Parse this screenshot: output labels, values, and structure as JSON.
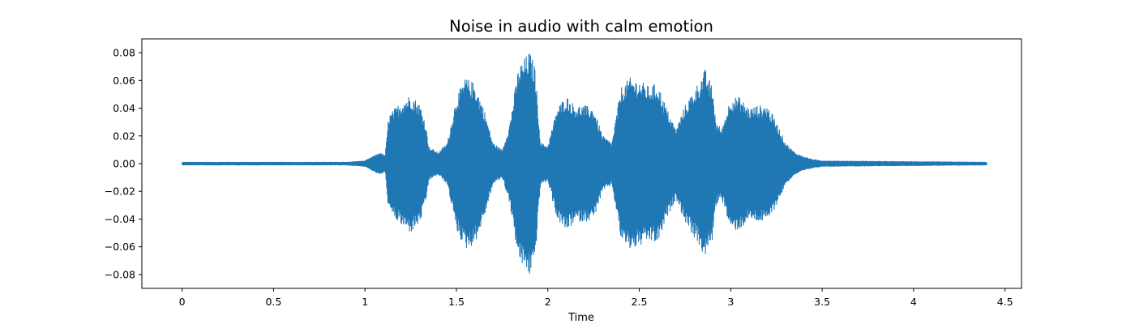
{
  "chart_data": {
    "type": "area",
    "title": "Noise in audio with calm emotion",
    "xlabel": "Time",
    "ylabel": "",
    "xlim": [
      -0.22,
      4.59
    ],
    "ylim": [
      -0.09,
      0.09
    ],
    "x_ticks": [
      0,
      0.5,
      1,
      1.5,
      2,
      2.5,
      3,
      3.5,
      4,
      4.5
    ],
    "x_tick_labels": [
      "0",
      "0.5",
      "1",
      "1.5",
      "2",
      "2.5",
      "3",
      "3.5",
      "4",
      "4.5"
    ],
    "y_ticks": [
      -0.08,
      -0.06,
      -0.04,
      -0.02,
      0.0,
      0.02,
      0.04,
      0.06,
      0.08
    ],
    "y_tick_labels": [
      "−0.08",
      "−0.06",
      "−0.04",
      "−0.02",
      "0.00",
      "0.02",
      "0.04",
      "0.06",
      "0.08"
    ],
    "grid": false,
    "series_color": "#1f77b4",
    "series": [
      {
        "envelope": [
          [
            0.0,
            0.001
          ],
          [
            0.9,
            0.001
          ],
          [
            1.0,
            0.002
          ],
          [
            1.08,
            0.008
          ],
          [
            1.11,
            0.006
          ],
          [
            1.13,
            0.035
          ],
          [
            1.2,
            0.045
          ],
          [
            1.25,
            0.05
          ],
          [
            1.3,
            0.043
          ],
          [
            1.33,
            0.03
          ],
          [
            1.35,
            0.012
          ],
          [
            1.4,
            0.008
          ],
          [
            1.45,
            0.015
          ],
          [
            1.5,
            0.048
          ],
          [
            1.55,
            0.062
          ],
          [
            1.6,
            0.058
          ],
          [
            1.65,
            0.04
          ],
          [
            1.7,
            0.015
          ],
          [
            1.75,
            0.01
          ],
          [
            1.79,
            0.028
          ],
          [
            1.84,
            0.07
          ],
          [
            1.9,
            0.081
          ],
          [
            1.93,
            0.07
          ],
          [
            1.96,
            0.015
          ],
          [
            2.0,
            0.013
          ],
          [
            2.05,
            0.04
          ],
          [
            2.1,
            0.049
          ],
          [
            2.15,
            0.042
          ],
          [
            2.2,
            0.042
          ],
          [
            2.25,
            0.04
          ],
          [
            2.3,
            0.02
          ],
          [
            2.35,
            0.015
          ],
          [
            2.4,
            0.055
          ],
          [
            2.45,
            0.062
          ],
          [
            2.5,
            0.06
          ],
          [
            2.55,
            0.056
          ],
          [
            2.6,
            0.058
          ],
          [
            2.65,
            0.04
          ],
          [
            2.7,
            0.025
          ],
          [
            2.75,
            0.042
          ],
          [
            2.82,
            0.058
          ],
          [
            2.86,
            0.068
          ],
          [
            2.9,
            0.055
          ],
          [
            2.92,
            0.03
          ],
          [
            2.95,
            0.025
          ],
          [
            3.0,
            0.048
          ],
          [
            3.05,
            0.048
          ],
          [
            3.1,
            0.04
          ],
          [
            3.15,
            0.042
          ],
          [
            3.2,
            0.042
          ],
          [
            3.25,
            0.03
          ],
          [
            3.3,
            0.015
          ],
          [
            3.35,
            0.008
          ],
          [
            3.4,
            0.005
          ],
          [
            3.45,
            0.003
          ],
          [
            3.5,
            0.002
          ],
          [
            4.4,
            0.001
          ]
        ]
      }
    ]
  }
}
